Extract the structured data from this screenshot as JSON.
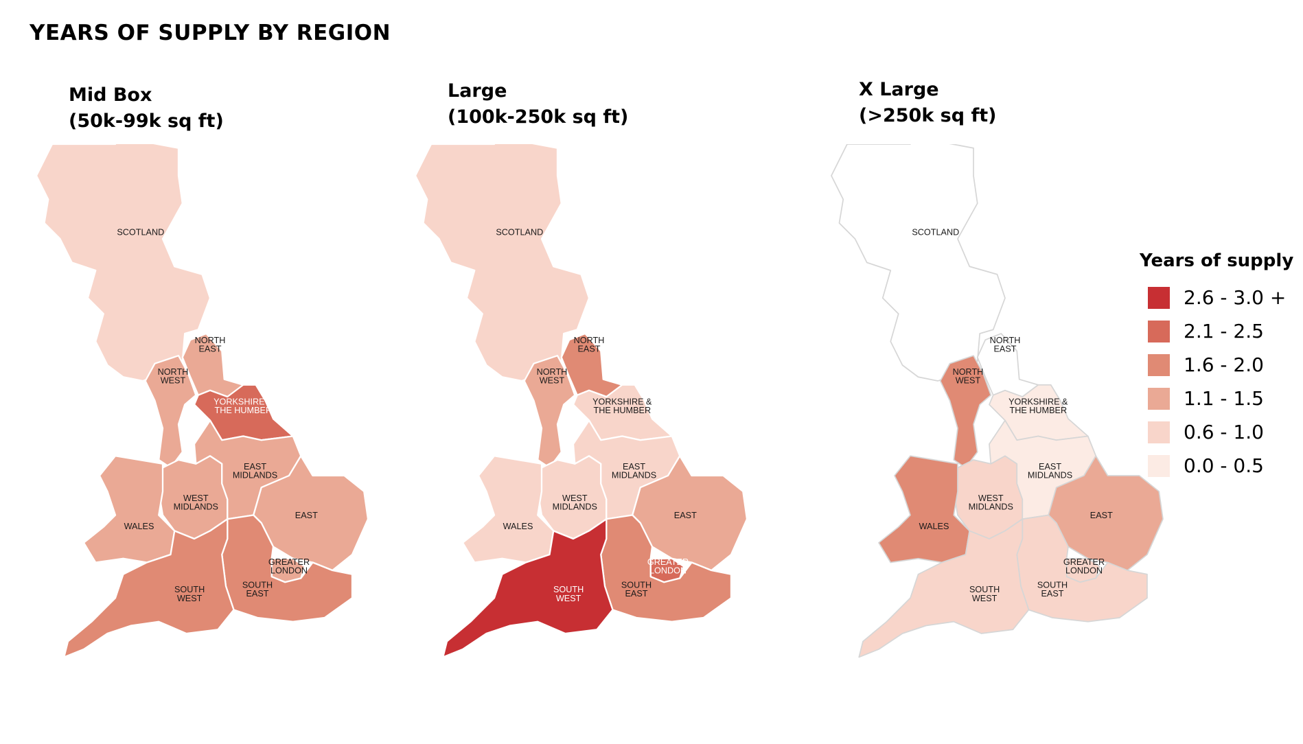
{
  "title": "YEARS OF SUPPLY BY REGION",
  "colors": {
    "c0": "#fcebe4",
    "c1": "#f8d5ca",
    "c2": "#eaa995",
    "c3": "#e08a74",
    "c4": "#d76a5a",
    "c5": "#c72f33",
    "none": "#ffffff"
  },
  "legend": {
    "title": "Years of supply",
    "items": [
      {
        "label": "2.6 - 3.0 +",
        "color": "#c72f33"
      },
      {
        "label": "2.1 - 2.5",
        "color": "#d76a5a"
      },
      {
        "label": "1.6 - 2.0",
        "color": "#e08a74"
      },
      {
        "label": "1.1 - 1.5",
        "color": "#eaa995"
      },
      {
        "label": "0.6 - 1.0",
        "color": "#f8d5ca"
      },
      {
        "label": "0.0 - 0.5",
        "color": "#fcebe4"
      }
    ]
  },
  "region_labels": {
    "scotland": "SCOTLAND",
    "north_east": [
      "NORTH",
      "EAST"
    ],
    "north_west": [
      "NORTH",
      "WEST"
    ],
    "yorkshire": [
      "YORKSHIRE &",
      "THE HUMBER"
    ],
    "east_midlands": [
      "EAST",
      "MIDLANDS"
    ],
    "west_midlands": [
      "WEST",
      "MIDLANDS"
    ],
    "wales": "WALES",
    "east": "EAST",
    "greater_london": [
      "GREATER",
      "LONDON"
    ],
    "south_east": [
      "SOUTH",
      "EAST"
    ],
    "south_west": [
      "SOUTH",
      "WEST"
    ]
  },
  "panels": [
    {
      "title_line1": "Mid Box",
      "title_line2": "(50k-99k sq ft)",
      "fills": {
        "scotland": "0.6 - 1.0",
        "north_east": "1.1 - 1.5",
        "north_west": "1.1 - 1.5",
        "yorkshire": "2.1 - 2.5",
        "east_midlands": "1.1 - 1.5",
        "west_midlands": "1.1 - 1.5",
        "wales": "1.1 - 1.5",
        "east": "1.1 - 1.5",
        "greater_london": "1.1 - 1.5",
        "south_east": "1.6 - 2.0",
        "south_west": "1.6 - 2.0"
      }
    },
    {
      "title_line1": "Large",
      "title_line2": "(100k-250k sq ft)",
      "fills": {
        "scotland": "0.6 - 1.0",
        "north_east": "1.6 - 2.0",
        "north_west": "1.1 - 1.5",
        "yorkshire": "0.6 - 1.0",
        "east_midlands": "0.6 - 1.0",
        "west_midlands": "0.6 - 1.0",
        "wales": "0.6 - 1.0",
        "east": "1.1 - 1.5",
        "greater_london": "2.1 - 2.5",
        "south_east": "1.6 - 2.0",
        "south_west": "2.6 - 3.0 +"
      }
    },
    {
      "title_line1": "X Large",
      "title_line2": "(>250k sq ft)",
      "fills": {
        "scotland": "none",
        "north_east": "none",
        "north_west": "1.6 - 2.0",
        "yorkshire": "0.0 - 0.5",
        "east_midlands": "0.0 - 0.5",
        "west_midlands": "0.6 - 1.0",
        "wales": "1.6 - 2.0",
        "east": "1.1 - 1.5",
        "greater_london": "0.6 - 1.0",
        "south_east": "0.6 - 1.0",
        "south_west": "0.6 - 1.0"
      }
    }
  ]
}
